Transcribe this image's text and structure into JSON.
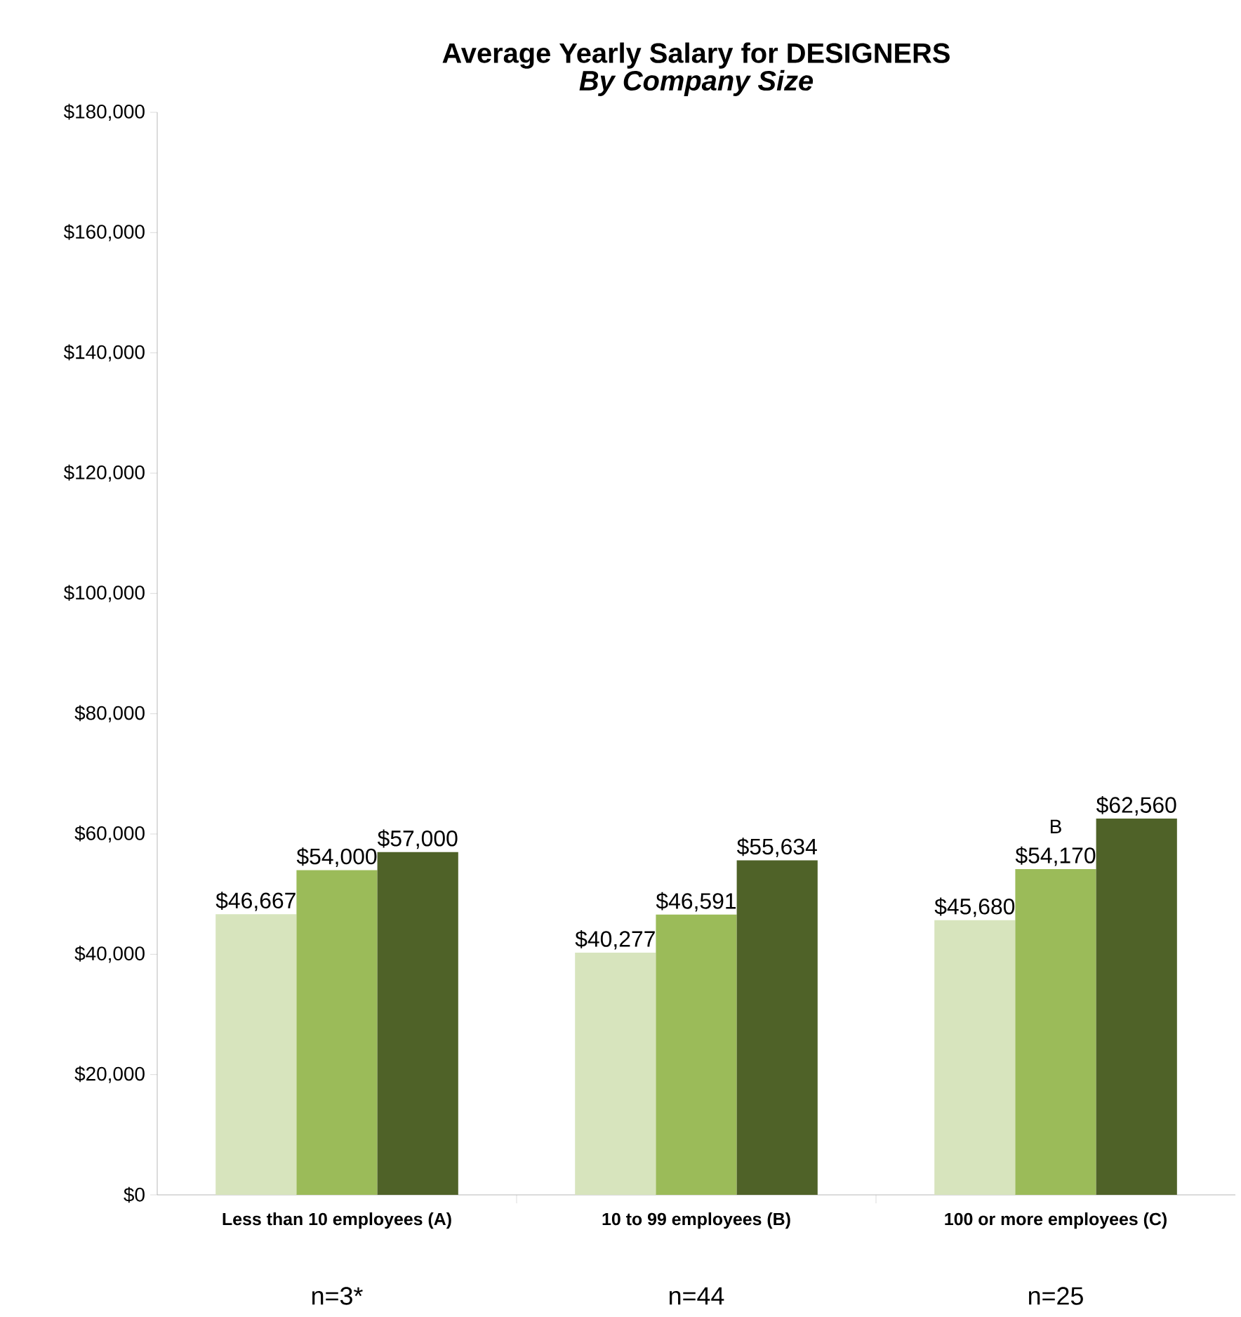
{
  "chart_data": {
    "type": "bar",
    "title": "Average Yearly Salary for DESIGNERS",
    "subtitle": "By Company Size",
    "categories": [
      "Less than 10 employees (A)",
      "10 to 99 employees (B)",
      "100 or more employees (C)"
    ],
    "series": [
      {
        "color": "#d7e4bd",
        "values": [
          46667,
          40277,
          45680
        ],
        "value_labels": [
          "$46,667",
          "$40,277",
          "$45,680"
        ]
      },
      {
        "color": "#9bbb59",
        "values": [
          54000,
          46591,
          54170
        ],
        "value_labels": [
          "$54,000",
          "$46,591",
          "$54,170"
        ]
      },
      {
        "color": "#4f6228",
        "values": [
          57000,
          55634,
          62560
        ],
        "value_labels": [
          "$57,000",
          "$55,634",
          "$62,560"
        ]
      }
    ],
    "ylim": [
      0,
      180000
    ],
    "yticks": [
      {
        "value": 0,
        "label": "$0"
      },
      {
        "value": 20000,
        "label": "$20,000"
      },
      {
        "value": 40000,
        "label": "$40,000"
      },
      {
        "value": 60000,
        "label": "$60,000"
      },
      {
        "value": 80000,
        "label": "$80,000"
      },
      {
        "value": 100000,
        "label": "$100,000"
      },
      {
        "value": 120000,
        "label": "$120,000"
      },
      {
        "value": 140000,
        "label": "$140,000"
      },
      {
        "value": 160000,
        "label": "$160,000"
      },
      {
        "value": 180000,
        "label": "$180,000"
      }
    ],
    "grid": false,
    "annotations": [
      {
        "text": "B",
        "x": "100 or more employees (C)",
        "y": 54170
      },
      "n=3*",
      "n=44",
      "n=25"
    ]
  }
}
